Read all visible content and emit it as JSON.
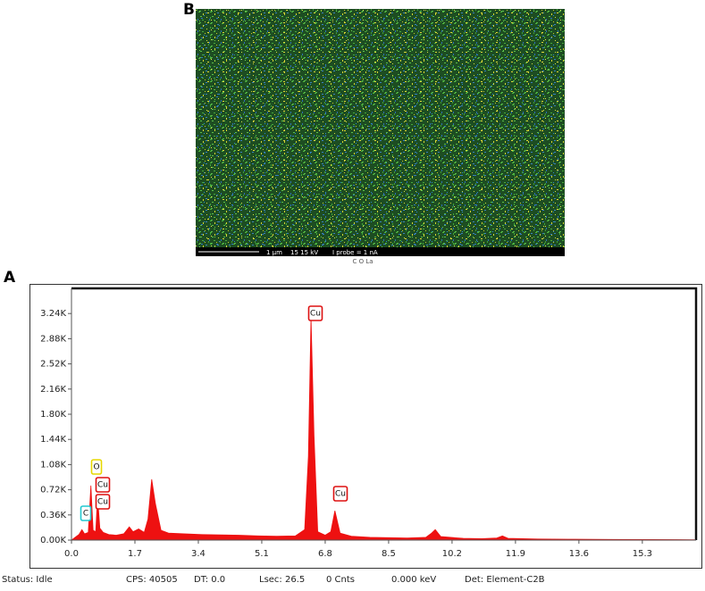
{
  "panels": {
    "top_label": "B",
    "bottom_label": "A"
  },
  "map_image": {
    "scale_text": "1 μm",
    "voltage_text": "15 15 kV",
    "probe_text": "I probe = 1 nA",
    "caption": "C  O  La"
  },
  "chart_data": {
    "type": "area",
    "x": [
      0.0,
      0.1,
      0.2,
      0.28,
      0.35,
      0.45,
      0.52,
      0.58,
      0.65,
      0.7,
      0.76,
      0.85,
      1.0,
      1.2,
      1.4,
      1.55,
      1.65,
      1.8,
      1.95,
      2.05,
      2.15,
      2.25,
      2.4,
      2.6,
      3.0,
      3.5,
      4.0,
      4.5,
      5.0,
      5.5,
      6.0,
      6.25,
      6.35,
      6.42,
      6.5,
      6.6,
      6.8,
      6.95,
      7.06,
      7.2,
      7.5,
      8.0,
      8.5,
      9.0,
      9.5,
      9.65,
      9.75,
      9.9,
      10.5,
      11.0,
      11.4,
      11.55,
      11.7,
      12.5,
      13.5,
      14.5,
      15.5,
      16.7
    ],
    "series": [
      {
        "color": "#ee1111",
        "values": [
          0,
          40,
          80,
          150,
          90,
          110,
          780,
          140,
          120,
          630,
          170,
          110,
          80,
          70,
          90,
          190,
          120,
          160,
          110,
          300,
          870,
          520,
          140,
          100,
          90,
          80,
          75,
          70,
          60,
          55,
          60,
          150,
          1200,
          3190,
          1500,
          120,
          70,
          120,
          420,
          100,
          55,
          40,
          35,
          30,
          40,
          100,
          150,
          50,
          25,
          20,
          30,
          60,
          25,
          15,
          12,
          10,
          8,
          5
        ]
      }
    ],
    "annotations": [
      {
        "text": "O",
        "color": "#e6d800"
      },
      {
        "text": "Cu",
        "color": "#dd1111"
      },
      {
        "text": "Cu",
        "color": "#dd1111"
      },
      {
        "text": "C",
        "color": "#22c8d0"
      },
      {
        "text": "Cu",
        "color": "#dd1111"
      },
      {
        "text": "Cu",
        "color": "#dd1111"
      }
    ],
    "xlim": [
      0,
      16.74
    ],
    "ylim": [
      0,
      3600
    ],
    "xticks": [
      {
        "value": 0,
        "label": "0.0"
      },
      1.7,
      3.4,
      5.1,
      6.8,
      8.5,
      10.2,
      11.9,
      13.6,
      15.3
    ],
    "yticks": [
      {
        "value": 0,
        "label": "0.00K"
      },
      {
        "value": 360,
        "label": "0.36K"
      },
      {
        "value": 720,
        "label": "0.72K"
      },
      {
        "value": 1080,
        "label": "1.08K"
      },
      {
        "value": 1440,
        "label": "1.44K"
      },
      {
        "value": 1800,
        "label": "1.80K"
      },
      {
        "value": 2160,
        "label": "2.16K"
      },
      {
        "value": 2520,
        "label": "2.52K"
      },
      {
        "value": 2880,
        "label": "2.88K"
      },
      {
        "value": 3240,
        "label": "3.24K"
      }
    ]
  },
  "status_bar": [
    "Status: Idle",
    "CPS: 40505",
    "DT: 0.0",
    "Lsec: 26.5",
    "0 Cnts",
    "0.000 keV",
    "Det: Element-C2B"
  ]
}
